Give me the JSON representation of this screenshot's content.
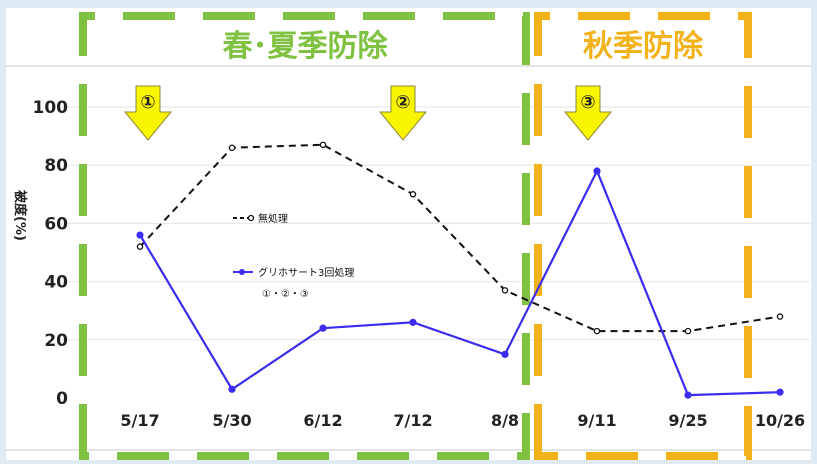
{
  "chart_data": {
    "type": "line",
    "categories": [
      "5/17",
      "5/30",
      "6/12",
      "7/12",
      "8/8",
      "9/11",
      "9/25",
      "10/26"
    ],
    "ylim": [
      0,
      100
    ],
    "yticks": [
      0,
      20,
      40,
      60,
      80,
      100
    ],
    "ylabel": "被度(%)",
    "series": [
      {
        "name": "無処理",
        "values": [
          52,
          86,
          87,
          70,
          37,
          23,
          23,
          28
        ],
        "color": "#111111",
        "dashed": true
      },
      {
        "name": "グリホサート3回処理",
        "values": [
          56,
          3,
          24,
          26,
          15,
          78,
          1,
          2
        ],
        "color": "#3a2cf0",
        "dashed": false
      }
    ],
    "legend_note": "①・②・③",
    "periods": [
      {
        "label": "春･夏季防除",
        "color": "#7fc241"
      },
      {
        "label": "秋季防除",
        "color": "#f2b21b"
      }
    ],
    "arrows": [
      {
        "label": "①",
        "at": "5/17"
      },
      {
        "label": "②",
        "at": "7/12"
      },
      {
        "label": "③",
        "at": "9/11"
      }
    ]
  }
}
